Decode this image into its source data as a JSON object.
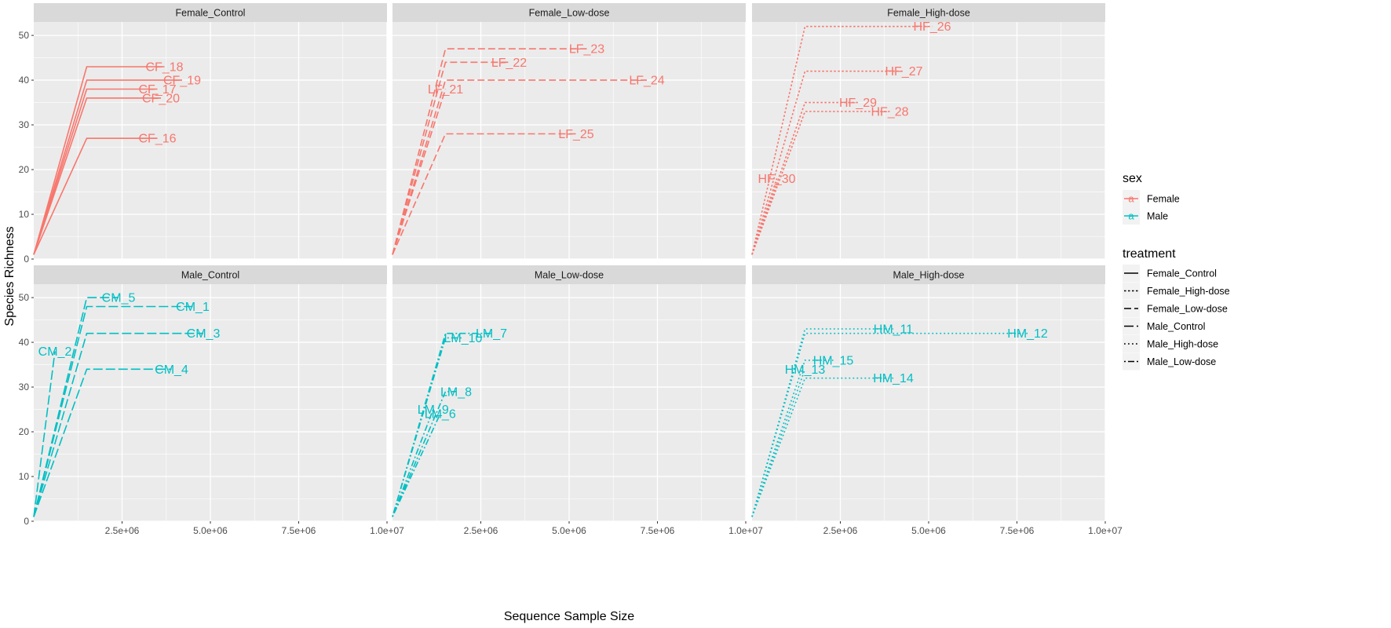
{
  "chart_data": {
    "type": "line",
    "title": "",
    "xlabel": "Sequence Sample Size",
    "ylabel": "Species Richness",
    "xlim": [
      0,
      10000000
    ],
    "ylim": [
      0,
      53
    ],
    "x_ticks": [
      2500000,
      5000000,
      7500000,
      10000000
    ],
    "x_tick_labels": [
      "2.5e+06",
      "5.0e+06",
      "7.5e+06",
      "1.0e+07"
    ],
    "y_ticks": [
      0,
      10,
      20,
      30,
      40,
      50
    ],
    "y_tick_labels": [
      "0",
      "10",
      "20",
      "30",
      "40",
      "50"
    ],
    "grid": true,
    "legend": {
      "placement": "right",
      "sex_title": "sex",
      "sex_entries": [
        {
          "label": "Female",
          "color": "#F8766D",
          "glyph": "a"
        },
        {
          "label": "Male",
          "color": "#00BFC4",
          "glyph": "a"
        }
      ],
      "treatment_title": "treatment",
      "treatment_entries": [
        {
          "label": "Female_Control",
          "dash": "solid"
        },
        {
          "label": "Female_High-dose",
          "dash": "dotdense"
        },
        {
          "label": "Female_Low-dose",
          "dash": "dashed"
        },
        {
          "label": "Male_Control",
          "dash": "longdash"
        },
        {
          "label": "Male_High-dose",
          "dash": "dotted"
        },
        {
          "label": "Male_Low-dose",
          "dash": "dotdash"
        }
      ]
    },
    "facets": [
      {
        "label": "Female_Control",
        "color": "#F8766D",
        "dash": "solid",
        "series": [
          {
            "name": "CF_18",
            "plateau_x": 1500000,
            "end_x": 3700000,
            "y": 43
          },
          {
            "name": "CF_19",
            "plateau_x": 1500000,
            "end_x": 4200000,
            "y": 40
          },
          {
            "name": "CF_17",
            "plateau_x": 1500000,
            "end_x": 3500000,
            "y": 38
          },
          {
            "name": "CF_20",
            "plateau_x": 1500000,
            "end_x": 3600000,
            "y": 36
          },
          {
            "name": "CF_16",
            "plateau_x": 1500000,
            "end_x": 3500000,
            "y": 27
          }
        ]
      },
      {
        "label": "Female_Low-dose",
        "color": "#F8766D",
        "dash": "dashed",
        "series": [
          {
            "name": "LF_23",
            "plateau_x": 1500000,
            "end_x": 5500000,
            "y": 47
          },
          {
            "name": "LF_22",
            "plateau_x": 1500000,
            "end_x": 3300000,
            "y": 44
          },
          {
            "name": "LF_24",
            "plateau_x": 1500000,
            "end_x": 7200000,
            "y": 40
          },
          {
            "name": "LF_21",
            "plateau_x": 1500000,
            "end_x": 1500000,
            "y": 38
          },
          {
            "name": "LF_25",
            "plateau_x": 1500000,
            "end_x": 5200000,
            "y": 28
          }
        ]
      },
      {
        "label": "Female_High-dose",
        "color": "#F8766D",
        "dash": "dotdense",
        "series": [
          {
            "name": "HF_26",
            "plateau_x": 1500000,
            "end_x": 5100000,
            "y": 52
          },
          {
            "name": "HF_27",
            "plateau_x": 1500000,
            "end_x": 4300000,
            "y": 42
          },
          {
            "name": "HF_29",
            "plateau_x": 1500000,
            "end_x": 3000000,
            "y": 35
          },
          {
            "name": "HF_28",
            "plateau_x": 1500000,
            "end_x": 3900000,
            "y": 33
          },
          {
            "name": "HF_30",
            "plateau_x": 700000,
            "end_x": 700000,
            "y": 18
          }
        ]
      },
      {
        "label": "Male_Control",
        "color": "#00BFC4",
        "dash": "longdash",
        "series": [
          {
            "name": "CM_5",
            "plateau_x": 1500000,
            "end_x": 2400000,
            "y": 50
          },
          {
            "name": "CM_1",
            "plateau_x": 1500000,
            "end_x": 4500000,
            "y": 48
          },
          {
            "name": "CM_3",
            "plateau_x": 1500000,
            "end_x": 4800000,
            "y": 42
          },
          {
            "name": "CM_2",
            "plateau_x": 600000,
            "end_x": 600000,
            "y": 38
          },
          {
            "name": "CM_4",
            "plateau_x": 1500000,
            "end_x": 3900000,
            "y": 34
          }
        ]
      },
      {
        "label": "Male_Low-dose",
        "color": "#00BFC4",
        "dash": "dotdash",
        "series": [
          {
            "name": "LM_7",
            "plateau_x": 1500000,
            "end_x": 2800000,
            "y": 42
          },
          {
            "name": "LM_10",
            "plateau_x": 1500000,
            "end_x": 2000000,
            "y": 41
          },
          {
            "name": "LM_8",
            "plateau_x": 1500000,
            "end_x": 1800000,
            "y": 29
          },
          {
            "name": "LM_9",
            "plateau_x": 1150000,
            "end_x": 1150000,
            "y": 25
          },
          {
            "name": "LM_6",
            "plateau_x": 1350000,
            "end_x": 1350000,
            "y": 24
          }
        ]
      },
      {
        "label": "Male_High-dose",
        "color": "#00BFC4",
        "dash": "dotted",
        "series": [
          {
            "name": "HM_11",
            "plateau_x": 1500000,
            "end_x": 4000000,
            "y": 43
          },
          {
            "name": "HM_12",
            "plateau_x": 1500000,
            "end_x": 7800000,
            "y": 42
          },
          {
            "name": "HM_15",
            "plateau_x": 1500000,
            "end_x": 2300000,
            "y": 36
          },
          {
            "name": "HM_13",
            "plateau_x": 1500000,
            "end_x": 1500000,
            "y": 34
          },
          {
            "name": "HM_14",
            "plateau_x": 1500000,
            "end_x": 4000000,
            "y": 32
          }
        ]
      }
    ]
  }
}
